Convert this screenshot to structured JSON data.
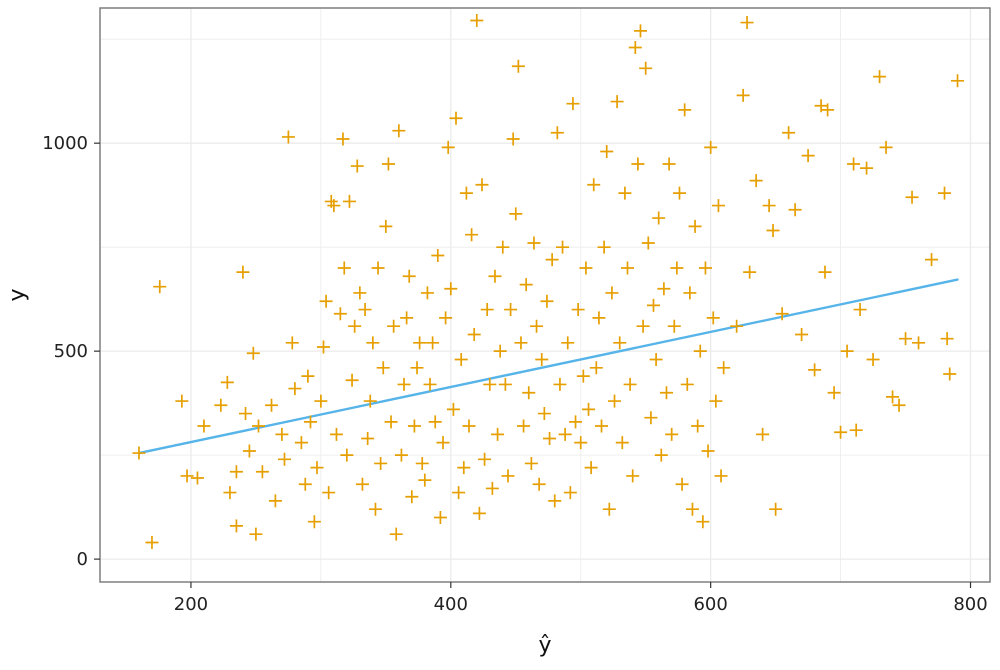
{
  "chart_data": {
    "type": "scatter",
    "title": "",
    "xlabel": "ŷ",
    "ylabel": "y",
    "xlim": [
      130,
      815
    ],
    "ylim": [
      -55,
      1325
    ],
    "xticks": [
      200,
      400,
      600,
      800
    ],
    "yticks": [
      0,
      500,
      1000
    ],
    "xtick_labels": [
      "200",
      "400",
      "600",
      "800"
    ],
    "ytick_labels": [
      "0",
      "500",
      "1000"
    ],
    "grid": true,
    "legend": "none",
    "colors": {
      "points": "#E69F00",
      "fit_line": "#56B4E9",
      "panel_border": "#7f7f7f",
      "grid": "#ebebeb"
    },
    "marker": "plus",
    "fit_line": {
      "x": [
        160,
        790
      ],
      "y": [
        255,
        672
      ]
    },
    "series": [
      {
        "values": [
          [
            160,
            255
          ],
          [
            170,
            40
          ],
          [
            176,
            655
          ],
          [
            193,
            380
          ],
          [
            197,
            200
          ],
          [
            205,
            195
          ],
          [
            210,
            320
          ],
          [
            223,
            370
          ],
          [
            228,
            425
          ],
          [
            230,
            160
          ],
          [
            235,
            80
          ],
          [
            235,
            210
          ],
          [
            240,
            690
          ],
          [
            242,
            350
          ],
          [
            245,
            260
          ],
          [
            248,
            495
          ],
          [
            250,
            60
          ],
          [
            252,
            320
          ],
          [
            255,
            210
          ],
          [
            262,
            370
          ],
          [
            265,
            140
          ],
          [
            270,
            300
          ],
          [
            272,
            240
          ],
          [
            275,
            1015
          ],
          [
            278,
            520
          ],
          [
            280,
            410
          ],
          [
            285,
            280
          ],
          [
            288,
            180
          ],
          [
            290,
            440
          ],
          [
            292,
            330
          ],
          [
            295,
            90
          ],
          [
            297,
            220
          ],
          [
            300,
            380
          ],
          [
            302,
            510
          ],
          [
            304,
            620
          ],
          [
            306,
            160
          ],
          [
            308,
            860
          ],
          [
            310,
            850
          ],
          [
            312,
            300
          ],
          [
            315,
            590
          ],
          [
            317,
            1010
          ],
          [
            318,
            700
          ],
          [
            320,
            250
          ],
          [
            322,
            860
          ],
          [
            324,
            430
          ],
          [
            326,
            560
          ],
          [
            328,
            945
          ],
          [
            330,
            640
          ],
          [
            332,
            180
          ],
          [
            334,
            600
          ],
          [
            336,
            290
          ],
          [
            338,
            380
          ],
          [
            340,
            520
          ],
          [
            342,
            120
          ],
          [
            344,
            700
          ],
          [
            346,
            230
          ],
          [
            348,
            460
          ],
          [
            350,
            800
          ],
          [
            352,
            950
          ],
          [
            354,
            330
          ],
          [
            356,
            560
          ],
          [
            358,
            60
          ],
          [
            360,
            1030
          ],
          [
            362,
            250
          ],
          [
            364,
            420
          ],
          [
            366,
            580
          ],
          [
            368,
            680
          ],
          [
            370,
            150
          ],
          [
            372,
            320
          ],
          [
            374,
            460
          ],
          [
            376,
            520
          ],
          [
            378,
            230
          ],
          [
            380,
            190
          ],
          [
            382,
            640
          ],
          [
            384,
            420
          ],
          [
            386,
            520
          ],
          [
            388,
            330
          ],
          [
            390,
            730
          ],
          [
            392,
            100
          ],
          [
            394,
            280
          ],
          [
            396,
            580
          ],
          [
            398,
            990
          ],
          [
            400,
            650
          ],
          [
            402,
            360
          ],
          [
            404,
            1060
          ],
          [
            406,
            160
          ],
          [
            408,
            480
          ],
          [
            410,
            220
          ],
          [
            412,
            880
          ],
          [
            414,
            320
          ],
          [
            416,
            780
          ],
          [
            418,
            540
          ],
          [
            420,
            1295
          ],
          [
            422,
            110
          ],
          [
            424,
            900
          ],
          [
            426,
            240
          ],
          [
            428,
            600
          ],
          [
            430,
            420
          ],
          [
            432,
            170
          ],
          [
            434,
            680
          ],
          [
            436,
            300
          ],
          [
            438,
            500
          ],
          [
            440,
            750
          ],
          [
            442,
            420
          ],
          [
            444,
            200
          ],
          [
            446,
            600
          ],
          [
            448,
            1010
          ],
          [
            450,
            830
          ],
          [
            452,
            1185
          ],
          [
            454,
            520
          ],
          [
            456,
            320
          ],
          [
            458,
            660
          ],
          [
            460,
            400
          ],
          [
            462,
            230
          ],
          [
            464,
            760
          ],
          [
            466,
            560
          ],
          [
            468,
            180
          ],
          [
            470,
            480
          ],
          [
            472,
            350
          ],
          [
            474,
            620
          ],
          [
            476,
            290
          ],
          [
            478,
            720
          ],
          [
            480,
            140
          ],
          [
            482,
            1025
          ],
          [
            484,
            420
          ],
          [
            486,
            750
          ],
          [
            488,
            300
          ],
          [
            490,
            520
          ],
          [
            492,
            160
          ],
          [
            494,
            1095
          ],
          [
            496,
            330
          ],
          [
            498,
            600
          ],
          [
            500,
            280
          ],
          [
            502,
            440
          ],
          [
            504,
            700
          ],
          [
            506,
            360
          ],
          [
            508,
            220
          ],
          [
            510,
            900
          ],
          [
            512,
            460
          ],
          [
            514,
            580
          ],
          [
            516,
            320
          ],
          [
            518,
            750
          ],
          [
            520,
            980
          ],
          [
            522,
            120
          ],
          [
            524,
            640
          ],
          [
            526,
            380
          ],
          [
            528,
            1100
          ],
          [
            530,
            520
          ],
          [
            532,
            280
          ],
          [
            534,
            880
          ],
          [
            536,
            700
          ],
          [
            538,
            420
          ],
          [
            540,
            200
          ],
          [
            542,
            1230
          ],
          [
            544,
            950
          ],
          [
            546,
            1270
          ],
          [
            548,
            560
          ],
          [
            550,
            1180
          ],
          [
            552,
            760
          ],
          [
            554,
            340
          ],
          [
            556,
            610
          ],
          [
            558,
            480
          ],
          [
            560,
            820
          ],
          [
            562,
            250
          ],
          [
            564,
            650
          ],
          [
            566,
            400
          ],
          [
            568,
            950
          ],
          [
            570,
            300
          ],
          [
            572,
            560
          ],
          [
            574,
            700
          ],
          [
            576,
            880
          ],
          [
            578,
            180
          ],
          [
            580,
            1080
          ],
          [
            582,
            420
          ],
          [
            584,
            640
          ],
          [
            586,
            120
          ],
          [
            588,
            800
          ],
          [
            590,
            320
          ],
          [
            592,
            500
          ],
          [
            594,
            90
          ],
          [
            596,
            700
          ],
          [
            598,
            260
          ],
          [
            600,
            990
          ],
          [
            602,
            580
          ],
          [
            604,
            380
          ],
          [
            606,
            850
          ],
          [
            608,
            200
          ],
          [
            610,
            460
          ],
          [
            620,
            560
          ],
          [
            625,
            1115
          ],
          [
            628,
            1290
          ],
          [
            630,
            690
          ],
          [
            635,
            910
          ],
          [
            640,
            300
          ],
          [
            645,
            850
          ],
          [
            648,
            790
          ],
          [
            650,
            120
          ],
          [
            655,
            590
          ],
          [
            660,
            1025
          ],
          [
            665,
            840
          ],
          [
            670,
            540
          ],
          [
            675,
            970
          ],
          [
            680,
            455
          ],
          [
            685,
            1090
          ],
          [
            688,
            690
          ],
          [
            690,
            1080
          ],
          [
            695,
            400
          ],
          [
            700,
            305
          ],
          [
            705,
            500
          ],
          [
            710,
            950
          ],
          [
            712,
            310
          ],
          [
            715,
            600
          ],
          [
            720,
            940
          ],
          [
            725,
            480
          ],
          [
            730,
            1160
          ],
          [
            735,
            990
          ],
          [
            740,
            390
          ],
          [
            745,
            370
          ],
          [
            750,
            530
          ],
          [
            755,
            870
          ],
          [
            760,
            520
          ],
          [
            770,
            720
          ],
          [
            780,
            880
          ],
          [
            782,
            530
          ],
          [
            784,
            445
          ],
          [
            790,
            1150
          ]
        ]
      }
    ]
  }
}
